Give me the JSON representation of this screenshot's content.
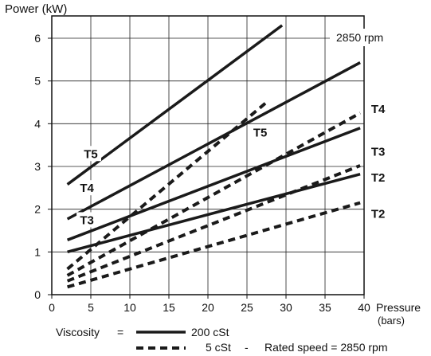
{
  "chart_data": {
    "type": "line",
    "title": "",
    "ylabel": "Power (kW)",
    "xlabel": "Pressure",
    "xlabel_unit": "(bars)",
    "annotation": "2850 rpm",
    "xlim": [
      0,
      40
    ],
    "ylim": [
      0,
      6.6
    ],
    "x_ticks": [
      0,
      5,
      10,
      15,
      20,
      25,
      30,
      35,
      40
    ],
    "y_ticks": [
      0,
      1,
      2,
      3,
      4,
      5,
      6
    ],
    "grid": true,
    "series": [
      {
        "name": "T5",
        "style": "solid",
        "points": [
          [
            2,
            2.58
          ],
          [
            29.5,
            6.3
          ]
        ]
      },
      {
        "name": "T4",
        "style": "solid",
        "points": [
          [
            2,
            1.77
          ],
          [
            39.5,
            5.43
          ]
        ]
      },
      {
        "name": "T3",
        "style": "solid",
        "points": [
          [
            2,
            1.28
          ],
          [
            39.5,
            3.9
          ]
        ]
      },
      {
        "name": "T2",
        "style": "solid",
        "points": [
          [
            2,
            1.0
          ],
          [
            39.5,
            2.82
          ]
        ]
      },
      {
        "name": "T5",
        "style": "dashed",
        "points": [
          [
            2,
            0.6
          ],
          [
            27.5,
            4.5
          ]
        ]
      },
      {
        "name": "T4",
        "style": "dashed",
        "points": [
          [
            2,
            0.45
          ],
          [
            39.5,
            4.25
          ]
        ]
      },
      {
        "name": "T3",
        "style": "dashed",
        "points": [
          [
            2,
            0.32
          ],
          [
            39.5,
            3.02
          ]
        ]
      },
      {
        "name": "T2",
        "style": "dashed",
        "points": [
          [
            2,
            0.18
          ],
          [
            39.5,
            2.15
          ]
        ]
      }
    ],
    "series_labels": [
      {
        "text": "T5",
        "x": 5,
        "y": 3.2
      },
      {
        "text": "T4",
        "x": 4.5,
        "y": 2.4
      },
      {
        "text": "T3",
        "x": 4.5,
        "y": 1.65
      },
      {
        "text": "T5",
        "x": 26.7,
        "y": 3.7
      },
      {
        "text": "T4",
        "x": 41.8,
        "y": 4.25
      },
      {
        "text": "T3",
        "x": 41.8,
        "y": 3.25
      },
      {
        "text": "T2",
        "x": 41.8,
        "y": 2.65
      },
      {
        "text": "T2",
        "x": 41.8,
        "y": 1.8
      }
    ],
    "legend": {
      "title": "Viscosity",
      "equals": "=",
      "solid_label": "200 cSt",
      "dashed_label": "5 cSt",
      "separator": "-",
      "note": "Rated speed = 2850 rpm"
    }
  }
}
